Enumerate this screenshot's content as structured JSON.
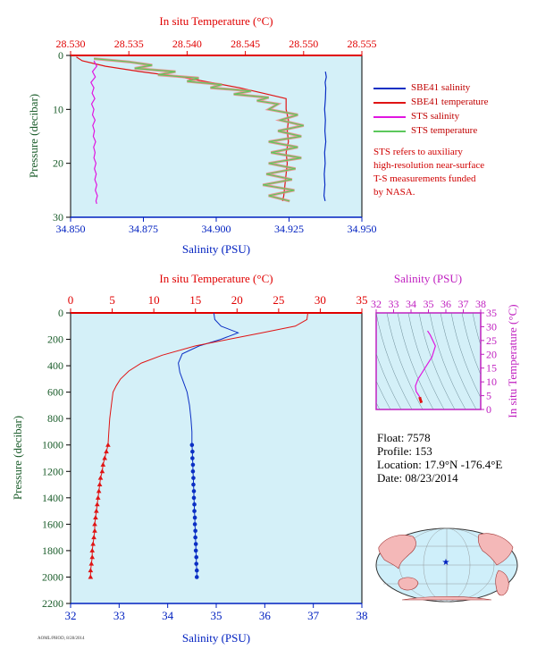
{
  "colors": {
    "salinity_blue": "#0b2fc4",
    "temperature_red": "#e01414",
    "sts_salinity_magenta": "#e016e0",
    "sts_temperature_green": "#5cc85c",
    "sts_temperature_pink": "#f08080",
    "plot_bg": "#d4f0f8",
    "axis_red": "#e00000",
    "axis_blue": "#0020c0",
    "axis_green": "#1a5c2a",
    "axis_magenta": "#c020c0"
  },
  "chart_data": [
    {
      "type": "line",
      "id": "near-surface",
      "title": "",
      "top_axis_label": "In situ Temperature (°C)",
      "top_ticks": [
        "28.530",
        "28.535",
        "28.540",
        "28.545",
        "28.550",
        "28.555"
      ],
      "top_range": [
        28.53,
        28.555
      ],
      "bottom_axis_label": "Salinity (PSU)",
      "bottom_ticks": [
        "34.850",
        "34.875",
        "34.900",
        "34.925",
        "34.950"
      ],
      "bottom_range": [
        34.85,
        34.95
      ],
      "left_axis_label": "Pressure (decibar)",
      "left_ticks": [
        "0",
        "10",
        "20",
        "30"
      ],
      "left_range": [
        0,
        30
      ],
      "legend_position": "right",
      "legend": [
        {
          "name": "SBE41 salinity",
          "color": "#0b2fc4"
        },
        {
          "name": "SBE41 temperature",
          "color": "#e01414"
        },
        {
          "name": "STS salinity",
          "color": "#e016e0"
        },
        {
          "name": "STS temperature",
          "color": "#5cc85c"
        }
      ],
      "note": [
        "STS refers to auxiliary",
        "high-resolution near-surface",
        "T-S measurements funded",
        "by NASA."
      ],
      "series": [
        {
          "name": "SBE41 salinity",
          "axis": "salinity",
          "points": [
            [
              34.9375,
              3.0
            ],
            [
              34.9378,
              4.0
            ],
            [
              34.9374,
              5.0
            ],
            [
              34.9376,
              6.0
            ],
            [
              34.9375,
              8.0
            ],
            [
              34.9372,
              10.0
            ],
            [
              34.9375,
              12.0
            ],
            [
              34.9373,
              14.0
            ],
            [
              34.9376,
              16.0
            ],
            [
              34.9372,
              18.0
            ],
            [
              34.9374,
              20.0
            ],
            [
              34.9371,
              22.0
            ],
            [
              34.9373,
              24.0
            ],
            [
              34.937,
              26.0
            ],
            [
              34.9374,
              27.0
            ]
          ]
        },
        {
          "name": "SBE41 temperature",
          "axis": "temperature",
          "points": [
            [
              28.5305,
              0.3
            ],
            [
              28.531,
              1.0
            ],
            [
              28.533,
              2.0
            ],
            [
              28.536,
              3.0
            ],
            [
              28.5395,
              4.0
            ],
            [
              28.542,
              5.0
            ],
            [
              28.5445,
              6.0
            ],
            [
              28.5465,
              7.0
            ],
            [
              28.5485,
              8.0
            ],
            [
              28.5485,
              10.0
            ],
            [
              28.5487,
              12.0
            ],
            [
              28.5486,
              14.0
            ],
            [
              28.5487,
              16.0
            ],
            [
              28.5485,
              18.0
            ],
            [
              28.5486,
              20.0
            ],
            [
              28.5485,
              22.0
            ],
            [
              28.5484,
              24.0
            ],
            [
              28.5483,
              26.0
            ],
            [
              28.5482,
              27.0
            ]
          ]
        },
        {
          "name": "STS salinity",
          "axis": "salinity",
          "points": [
            [
              34.858,
              1.0
            ],
            [
              34.859,
              2.0
            ],
            [
              34.8575,
              3.0
            ],
            [
              34.8585,
              4.0
            ],
            [
              34.857,
              5.0
            ],
            [
              34.858,
              6.0
            ],
            [
              34.8574,
              7.0
            ],
            [
              34.8583,
              8.0
            ],
            [
              34.8572,
              9.0
            ],
            [
              34.858,
              10.0
            ],
            [
              34.8575,
              11.0
            ],
            [
              34.8584,
              12.0
            ],
            [
              34.8576,
              13.0
            ],
            [
              34.8582,
              14.0
            ],
            [
              34.8578,
              15.0
            ],
            [
              34.8586,
              16.0
            ],
            [
              34.8579,
              17.0
            ],
            [
              34.8584,
              18.0
            ],
            [
              34.858,
              19.0
            ],
            [
              34.8587,
              20.0
            ],
            [
              34.8582,
              21.0
            ],
            [
              34.8588,
              22.0
            ],
            [
              34.8583,
              23.0
            ],
            [
              34.859,
              24.0
            ],
            [
              34.8585,
              25.0
            ],
            [
              34.8592,
              26.0
            ],
            [
              34.8587,
              27.0
            ],
            [
              34.859,
              27.5
            ]
          ]
        },
        {
          "name": "STS temperature",
          "axis": "temperature",
          "points": [
            [
              28.532,
              0.6
            ],
            [
              28.535,
              1.2
            ],
            [
              28.537,
              1.8
            ],
            [
              28.5355,
              2.4
            ],
            [
              28.539,
              3.0
            ],
            [
              28.5375,
              3.6
            ],
            [
              28.541,
              4.2
            ],
            [
              28.54,
              4.8
            ],
            [
              28.543,
              5.4
            ],
            [
              28.542,
              6.0
            ],
            [
              28.5455,
              6.6
            ],
            [
              28.544,
              7.2
            ],
            [
              28.547,
              7.8
            ],
            [
              28.546,
              8.4
            ],
            [
              28.5478,
              9.0
            ],
            [
              28.547,
              10.0
            ],
            [
              28.5495,
              11.0
            ],
            [
              28.548,
              12.0
            ],
            [
              28.55,
              13.0
            ],
            [
              28.5478,
              14.0
            ],
            [
              28.5498,
              15.0
            ],
            [
              28.547,
              16.0
            ],
            [
              28.5495,
              17.0
            ],
            [
              28.5472,
              18.0
            ],
            [
              28.5498,
              19.0
            ],
            [
              28.547,
              20.0
            ],
            [
              28.5493,
              21.0
            ],
            [
              28.5468,
              22.0
            ],
            [
              28.549,
              23.0
            ],
            [
              28.5465,
              24.0
            ],
            [
              28.5492,
              25.0
            ],
            [
              28.547,
              26.0
            ],
            [
              28.5488,
              27.0
            ]
          ]
        }
      ]
    },
    {
      "type": "line",
      "id": "full-profile",
      "title": "",
      "top_axis_label": "In situ Temperature (°C)",
      "top_ticks": [
        "0",
        "5",
        "10",
        "15",
        "20",
        "25",
        "30",
        "35"
      ],
      "top_range": [
        0,
        35
      ],
      "bottom_axis_label": "Salinity (PSU)",
      "bottom_ticks": [
        "32",
        "33",
        "34",
        "35",
        "36",
        "37",
        "38"
      ],
      "bottom_range": [
        32,
        38
      ],
      "left_axis_label": "Pressure (decibar)",
      "left_ticks": [
        "0",
        "200",
        "400",
        "600",
        "800",
        "1000",
        "1200",
        "1400",
        "1600",
        "1800",
        "2000",
        "2200"
      ],
      "left_range": [
        0,
        2200
      ],
      "series": [
        {
          "name": "Salinity",
          "axis": "salinity",
          "points": [
            [
              34.95,
              0
            ],
            [
              34.97,
              50
            ],
            [
              35.1,
              100
            ],
            [
              35.45,
              150
            ],
            [
              35.1,
              200
            ],
            [
              34.65,
              250
            ],
            [
              34.3,
              310
            ],
            [
              34.22,
              380
            ],
            [
              34.25,
              450
            ],
            [
              34.32,
              520
            ],
            [
              34.4,
              600
            ],
            [
              34.45,
              700
            ],
            [
              34.48,
              800
            ],
            [
              34.5,
              900
            ],
            [
              34.5,
              1000
            ]
          ]
        },
        {
          "name": "Salinity (sparse)",
          "axis": "salinity",
          "markers": "circle",
          "points": [
            [
              34.5,
              1000
            ],
            [
              34.51,
              1050
            ],
            [
              34.51,
              1100
            ],
            [
              34.52,
              1150
            ],
            [
              34.52,
              1200
            ],
            [
              34.53,
              1250
            ],
            [
              34.53,
              1300
            ],
            [
              34.54,
              1350
            ],
            [
              34.54,
              1400
            ],
            [
              34.55,
              1450
            ],
            [
              34.55,
              1500
            ],
            [
              34.56,
              1550
            ],
            [
              34.56,
              1600
            ],
            [
              34.57,
              1650
            ],
            [
              34.57,
              1700
            ],
            [
              34.58,
              1750
            ],
            [
              34.58,
              1800
            ],
            [
              34.59,
              1850
            ],
            [
              34.59,
              1900
            ],
            [
              34.6,
              1950
            ],
            [
              34.6,
              2000
            ]
          ]
        },
        {
          "name": "Temperature",
          "axis": "temperature",
          "points": [
            [
              28.5,
              0
            ],
            [
              28.4,
              50
            ],
            [
              27.0,
              100
            ],
            [
              23.0,
              150
            ],
            [
              19.0,
              200
            ],
            [
              15.0,
              250
            ],
            [
              11.0,
              320
            ],
            [
              8.5,
              380
            ],
            [
              7.0,
              440
            ],
            [
              6.0,
              500
            ],
            [
              5.5,
              550
            ],
            [
              5.1,
              600
            ],
            [
              4.9,
              700
            ],
            [
              4.7,
              800
            ],
            [
              4.6,
              900
            ],
            [
              4.5,
              1000
            ]
          ]
        },
        {
          "name": "Temperature (sparse)",
          "axis": "temperature",
          "markers": "triangle",
          "points": [
            [
              4.5,
              1000
            ],
            [
              4.3,
              1050
            ],
            [
              4.1,
              1100
            ],
            [
              3.9,
              1150
            ],
            [
              3.8,
              1200
            ],
            [
              3.6,
              1250
            ],
            [
              3.5,
              1300
            ],
            [
              3.4,
              1350
            ],
            [
              3.3,
              1400
            ],
            [
              3.2,
              1450
            ],
            [
              3.1,
              1500
            ],
            [
              3.0,
              1550
            ],
            [
              2.9,
              1600
            ],
            [
              2.9,
              1650
            ],
            [
              2.8,
              1700
            ],
            [
              2.7,
              1750
            ],
            [
              2.6,
              1800
            ],
            [
              2.6,
              1850
            ],
            [
              2.5,
              1900
            ],
            [
              2.4,
              1950
            ],
            [
              2.4,
              2000
            ]
          ]
        }
      ]
    },
    {
      "type": "scatter",
      "id": "ts-diagram",
      "title": "",
      "top_axis_label": "Salinity (PSU)",
      "top_ticks": [
        "32",
        "33",
        "34",
        "35",
        "36",
        "37",
        "38"
      ],
      "top_range": [
        32,
        38
      ],
      "right_axis_label": "In situ Temperature (°C)",
      "right_ticks": [
        "0",
        "5",
        "10",
        "15",
        "20",
        "25",
        "30",
        "35"
      ],
      "right_range": [
        0,
        35
      ],
      "series": [
        {
          "name": "T-S",
          "points": [
            [
              34.95,
              28.5
            ],
            [
              35.1,
              27.0
            ],
            [
              35.4,
              23.0
            ],
            [
              35.2,
              19.0
            ],
            [
              34.8,
              15.0
            ],
            [
              34.4,
              11.0
            ],
            [
              34.25,
              8.5
            ],
            [
              34.3,
              6.5
            ],
            [
              34.4,
              5.5
            ],
            [
              34.45,
              5.0
            ],
            [
              34.5,
              4.5
            ]
          ]
        },
        {
          "name": "T-S deep",
          "points": [
            [
              34.5,
              4.5
            ],
            [
              34.52,
              4.0
            ],
            [
              34.54,
              3.6
            ],
            [
              34.55,
              3.3
            ],
            [
              34.57,
              3.0
            ],
            [
              34.58,
              2.8
            ],
            [
              34.6,
              2.4
            ]
          ]
        }
      ]
    }
  ],
  "float_info": {
    "float": "Float:  7578",
    "profile": "Profile:  153",
    "location": "Location:  17.9°N  -176.4°E",
    "date": "Date:  08/23/2014"
  },
  "map": {
    "marker": "★"
  },
  "footer": "AOML/PHOD, 8/28/2014"
}
